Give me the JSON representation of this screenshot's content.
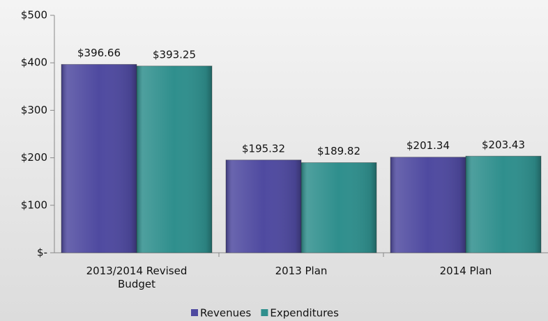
{
  "chart_data": {
    "type": "bar",
    "categories": [
      "2013/2014 Revised Budget",
      "2013 Plan",
      "2014 Plan"
    ],
    "series": [
      {
        "name": "Revenues",
        "color": "#4f4aa0",
        "values": [
          396.66,
          195.32,
          201.34
        ],
        "value_labels": [
          "$396.66",
          "$195.32",
          "$201.34"
        ]
      },
      {
        "name": "Expenditures",
        "color": "#2f8f8d",
        "values": [
          393.25,
          189.82,
          203.43
        ],
        "value_labels": [
          "$393.25",
          "$189.82",
          "$203.43"
        ]
      }
    ],
    "ylim": [
      0,
      500
    ],
    "yticks": [
      {
        "value": 0,
        "label": "$-"
      },
      {
        "value": 100,
        "label": "$100"
      },
      {
        "value": 200,
        "label": "$200"
      },
      {
        "value": 300,
        "label": "$300"
      },
      {
        "value": 400,
        "label": "$400"
      },
      {
        "value": 500,
        "label": "$500"
      }
    ],
    "legend": "bottom"
  }
}
